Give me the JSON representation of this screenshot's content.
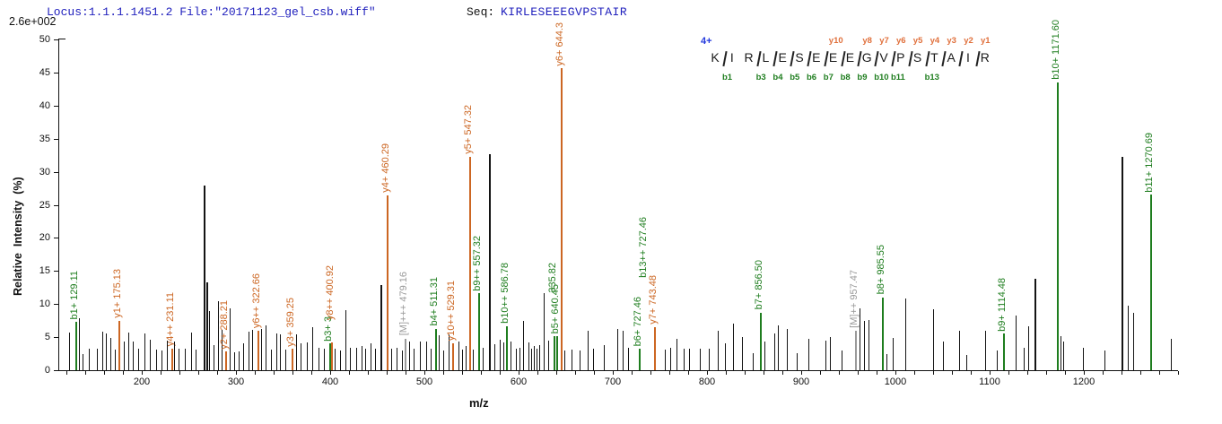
{
  "header": {
    "locus_text": "Locus:1.1.1.1451.2 File:\"20171123_gel_csb.wiff\"",
    "seq_label": "Seq:",
    "sequence": "KIRLESEEEGVPSTAIR"
  },
  "axes": {
    "scale_label": "2.6e+002",
    "y_title": "Relative  Intensity  (%)",
    "x_title": "m/z",
    "x_min": 120,
    "x_max": 1300,
    "x_minor_step": 20,
    "x_label_ticks": [
      200,
      300,
      400,
      500,
      600,
      700,
      800,
      900,
      1000,
      1100,
      1200
    ],
    "y_min": 0,
    "y_max": 50,
    "y_step": 5
  },
  "ladder": {
    "charge_label": "4+",
    "residues": "KIRLESEEEGVPSTAIR",
    "markers": [
      {
        "after": 0,
        "b": "b1",
        "y": null
      },
      {
        "after": 2,
        "b": "b3",
        "y": null
      },
      {
        "after": 3,
        "b": "b4",
        "y": null
      },
      {
        "after": 4,
        "b": "b5",
        "y": null
      },
      {
        "after": 5,
        "b": "b6",
        "y": null
      },
      {
        "after": 6,
        "b": "b7",
        "y": "y10"
      },
      {
        "after": 7,
        "b": "b8",
        "y": null
      },
      {
        "after": 8,
        "b": "b9",
        "y": "y8"
      },
      {
        "after": 9,
        "b": "b10",
        "y": "y7"
      },
      {
        "after": 10,
        "b": "b11",
        "y": "y6"
      },
      {
        "after": 11,
        "b": null,
        "y": "y5"
      },
      {
        "after": 12,
        "b": "b13",
        "y": "y4"
      },
      {
        "after": 13,
        "b": null,
        "y": "y3"
      },
      {
        "after": 14,
        "b": null,
        "y": "y2"
      },
      {
        "after": 15,
        "b": null,
        "y": "y1"
      }
    ]
  },
  "colors": {
    "b_ion": "#1e7d1e",
    "y_ion": "#cc6622",
    "precursor": "#9a9a9a",
    "unassigned": "#141414",
    "header_blue": "#2121bd",
    "charge_blue": "#2238dd",
    "ladder_y": "#e0703c",
    "text": "#111111"
  },
  "chart_data": {
    "type": "bar",
    "subtype": "ms2-centroid-spectrum",
    "title": "",
    "xlabel": "m/z",
    "ylabel": "Relative Intensity (%)",
    "xlim": [
      120,
      1300
    ],
    "ylim": [
      0,
      50
    ],
    "intensity_scale": "2.6e+002",
    "series_legend": {
      "b": "b-ion (green)",
      "y": "y-ion (orange)",
      "M": "precursor (gray)",
      "n": "unassigned (black)"
    },
    "peaks": [
      [
        123,
        5.7
      ],
      [
        129.11,
        7.3,
        "b",
        "b1+ 129.11"
      ],
      [
        133,
        7.8
      ],
      [
        137,
        2.4
      ],
      [
        144,
        3.2
      ],
      [
        152,
        3.3
      ],
      [
        158,
        5.8
      ],
      [
        162,
        5.6
      ],
      [
        167,
        4.9
      ],
      [
        171,
        3.1
      ],
      [
        175.13,
        7.5,
        "y",
        "y1+ 175.13"
      ],
      [
        181,
        4.4
      ],
      [
        186,
        5.7
      ],
      [
        190,
        4.4
      ],
      [
        196,
        3.3
      ],
      [
        203,
        5.6
      ],
      [
        209,
        4.6
      ],
      [
        215,
        3.1
      ],
      [
        221,
        3.0
      ],
      [
        227,
        4.5
      ],
      [
        231.11,
        3.2,
        "y",
        "y4++ 231.11"
      ],
      [
        234,
        4.4
      ],
      [
        239,
        3.3
      ],
      [
        246,
        3.2
      ],
      [
        252,
        5.7
      ],
      [
        257,
        3.1
      ],
      [
        265.5,
        27.9
      ],
      [
        268.5,
        13.3
      ],
      [
        271.5,
        9.0
      ],
      [
        276,
        3.8
      ],
      [
        281,
        10.4
      ],
      [
        285,
        6.1
      ],
      [
        288.21,
        2.8,
        "y",
        "y2+ 288.21"
      ],
      [
        293,
        9.3
      ],
      [
        298,
        2.7
      ],
      [
        303,
        2.9
      ],
      [
        308,
        4.1
      ],
      [
        313,
        5.8
      ],
      [
        317,
        6.1
      ],
      [
        322.66,
        6.0,
        "y",
        "y6++ 322.66"
      ],
      [
        326.5,
        6.3
      ],
      [
        331,
        6.8
      ],
      [
        337,
        3.1
      ],
      [
        343,
        5.6
      ],
      [
        347,
        5.4
      ],
      [
        352,
        3.1
      ],
      [
        359.25,
        3.2,
        "y",
        "y3+ 359.25"
      ],
      [
        363.5,
        5.4
      ],
      [
        369,
        4.1
      ],
      [
        375,
        4.2
      ],
      [
        381,
        6.5
      ],
      [
        388,
        3.4
      ],
      [
        393,
        3.3
      ],
      [
        399,
        4.0,
        "b",
        "b3+ 3"
      ],
      [
        400.92,
        4.2,
        "y",
        "y8++ 400.92",
        22
      ],
      [
        405,
        3.3
      ],
      [
        410,
        3.0
      ],
      [
        416,
        9.1
      ],
      [
        421,
        3.4
      ],
      [
        428,
        3.4
      ],
      [
        433,
        3.6
      ],
      [
        437.5,
        3.3
      ],
      [
        443,
        4.1
      ],
      [
        448,
        3.2
      ],
      [
        453,
        12.9
      ],
      [
        460.29,
        26.4,
        "y",
        "y4+ 460.29"
      ],
      [
        465,
        3.3
      ],
      [
        470,
        3.4
      ],
      [
        476,
        3.0
      ],
      [
        479.16,
        4.8,
        "M",
        "[M]+++ 479.16"
      ],
      [
        484,
        4.4
      ],
      [
        489,
        3.2
      ],
      [
        495,
        4.4
      ],
      [
        502,
        4.3
      ],
      [
        507,
        3.3
      ],
      [
        511.31,
        6.3,
        "b",
        "b4+ 511.31"
      ],
      [
        515.5,
        5.3
      ],
      [
        520,
        3.0
      ],
      [
        526,
        5.4
      ],
      [
        529.31,
        4.0,
        "y",
        "y10++ 529.31"
      ],
      [
        536,
        4.3
      ],
      [
        540,
        3.1
      ],
      [
        544,
        3.6
      ],
      [
        547.32,
        32.3,
        "y",
        "y5+ 547.32"
      ],
      [
        551.5,
        3.1
      ],
      [
        557.32,
        11.6,
        "b",
        "b9++ 557.32"
      ],
      [
        562,
        3.4
      ],
      [
        568.6,
        32.7
      ],
      [
        574,
        3.9
      ],
      [
        580,
        4.6
      ],
      [
        583.5,
        4.2
      ],
      [
        586.78,
        6.7,
        "b",
        "b10++ 586.78"
      ],
      [
        591.5,
        4.4
      ],
      [
        597,
        3.3
      ],
      [
        601,
        3.4
      ],
      [
        605,
        7.4
      ],
      [
        610,
        4.2
      ],
      [
        613,
        3.2
      ],
      [
        616,
        3.6
      ],
      [
        619,
        3.3
      ],
      [
        622,
        3.8
      ],
      [
        627,
        11.7
      ],
      [
        631,
        4.5
      ],
      [
        637,
        5.1,
        "b",
        "335.82",
        46
      ],
      [
        640.45,
        5.1,
        "b",
        "b5+ 640.45"
      ],
      [
        644.33,
        45.6,
        "y",
        "y6+ 644.3"
      ],
      [
        649,
        3.0
      ],
      [
        656,
        3.1
      ],
      [
        665,
        3.0
      ],
      [
        673,
        5.9
      ],
      [
        679,
        3.2
      ],
      [
        690,
        3.8
      ],
      [
        705,
        6.2
      ],
      [
        710,
        6.0
      ],
      [
        716,
        3.4
      ],
      [
        727.46,
        3.2,
        "b",
        "b6+ 727.46"
      ],
      [
        727.46,
        3.2,
        "b",
        "b13++ 727.46",
        76,
        6,
        1
      ],
      [
        743.48,
        6.5,
        "y",
        "y7+ 743.48"
      ],
      [
        755,
        3.1
      ],
      [
        761,
        3.4
      ],
      [
        768,
        4.8
      ],
      [
        775,
        3.2
      ],
      [
        781,
        3.2
      ],
      [
        792,
        3.3
      ],
      [
        802,
        3.3
      ],
      [
        811,
        5.9
      ],
      [
        819,
        4.1
      ],
      [
        828,
        7.1
      ],
      [
        837,
        5.0
      ],
      [
        849,
        2.6
      ],
      [
        856.5,
        8.7,
        "b",
        "b7+ 856.50"
      ],
      [
        861,
        4.4
      ],
      [
        871,
        5.6
      ],
      [
        875,
        6.8
      ],
      [
        885,
        6.3
      ],
      [
        895,
        2.6
      ],
      [
        908,
        4.7
      ],
      [
        926,
        4.5
      ],
      [
        930,
        5.0
      ],
      [
        943,
        3.0
      ],
      [
        957.47,
        6.0,
        "M",
        "[M]++ 957.47"
      ],
      [
        962,
        9.4
      ],
      [
        967,
        7.4
      ],
      [
        971,
        7.6
      ],
      [
        985.55,
        11.0,
        "b",
        "b8+ 985.55"
      ],
      [
        990,
        2.5
      ],
      [
        997,
        4.9
      ],
      [
        1010,
        10.9
      ],
      [
        1040,
        9.2
      ],
      [
        1050,
        4.3
      ],
      [
        1068,
        6.0
      ],
      [
        1075,
        2.3
      ],
      [
        1095,
        6.0
      ],
      [
        1108,
        3.0
      ],
      [
        1114.48,
        5.5,
        "b",
        "b9+ 1114.48"
      ],
      [
        1128,
        8.2
      ],
      [
        1136,
        3.4
      ],
      [
        1141,
        6.7
      ],
      [
        1148,
        13.8
      ],
      [
        1171.6,
        43.5,
        "b",
        "b10+ 1171.60"
      ],
      [
        1175,
        5.2
      ],
      [
        1178.5,
        4.4
      ],
      [
        1199,
        3.4
      ],
      [
        1222,
        3.0
      ],
      [
        1240,
        32.2
      ],
      [
        1247,
        9.8
      ],
      [
        1252,
        8.7
      ],
      [
        1270.69,
        26.5,
        "b",
        "b11+ 1270.69"
      ],
      [
        1292,
        4.8
      ]
    ]
  }
}
